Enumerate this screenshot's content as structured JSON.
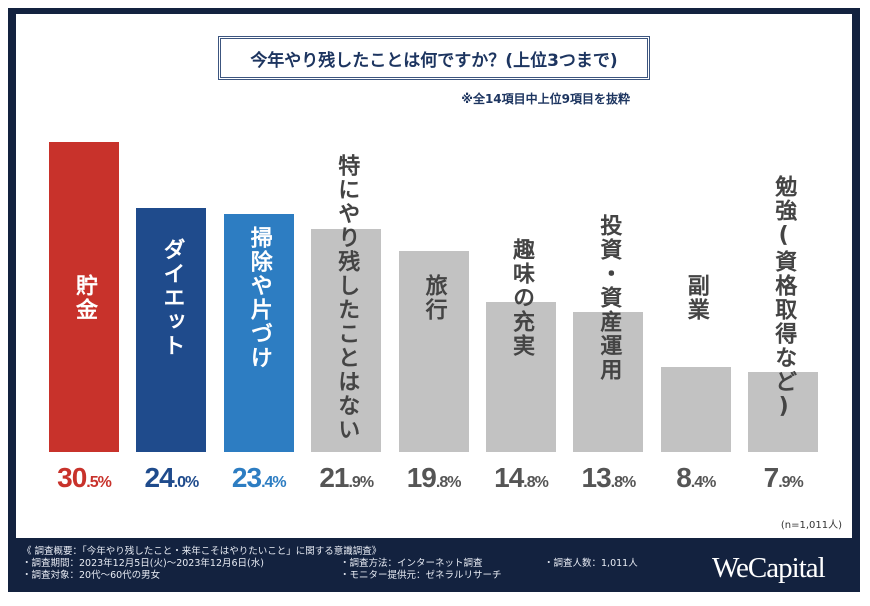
{
  "chart_data": {
    "type": "bar",
    "title": "今年やり残したことは何ですか？(上位3つまで)",
    "subtitle": "※全14項目中上位9項目を抜粋",
    "categories": [
      "貯金",
      "ダイエット",
      "掃除や片づけ",
      "特にやり残したことはない",
      "旅行",
      "趣味の充実",
      "投資・資産運用",
      "副業",
      "勉強(資格取得など)"
    ],
    "values": [
      30.5,
      24.0,
      23.4,
      21.9,
      19.8,
      14.8,
      13.8,
      8.4,
      7.9
    ],
    "value_labels": [
      "30.5%",
      "24.0%",
      "23.4%",
      "21.9%",
      "19.8%",
      "14.8%",
      "13.8%",
      "8.4%",
      "7.9%"
    ],
    "unit": "%",
    "colors": [
      "#c8322b",
      "#1f4b8c",
      "#2d7dc2",
      "#c2c2c2",
      "#c2c2c2",
      "#c2c2c2",
      "#c2c2c2",
      "#c2c2c2",
      "#c2c2c2"
    ],
    "value_colors": [
      "#c8322b",
      "#1f4b8c",
      "#2d7dc2",
      "#555555",
      "#555555",
      "#555555",
      "#555555",
      "#555555",
      "#555555"
    ],
    "ylim": [
      0,
      31
    ],
    "grid": false,
    "sample_note": "(n=1,011人)"
  },
  "footer": {
    "heading": "《 調査概要：「今年やり残したこと・来年こそはやりたいこと」に関する意識調査》",
    "period": "・調査期間：2023年12月5日(火)～2023年12月6日(水)",
    "target": "・調査対象：20代～60代の男女",
    "method": "・調査方法：インターネット調査",
    "provider": "・モニター提供元：ゼネラルリサーチ",
    "count": "・調査人数：1,011人"
  },
  "logo": "WeCapital"
}
